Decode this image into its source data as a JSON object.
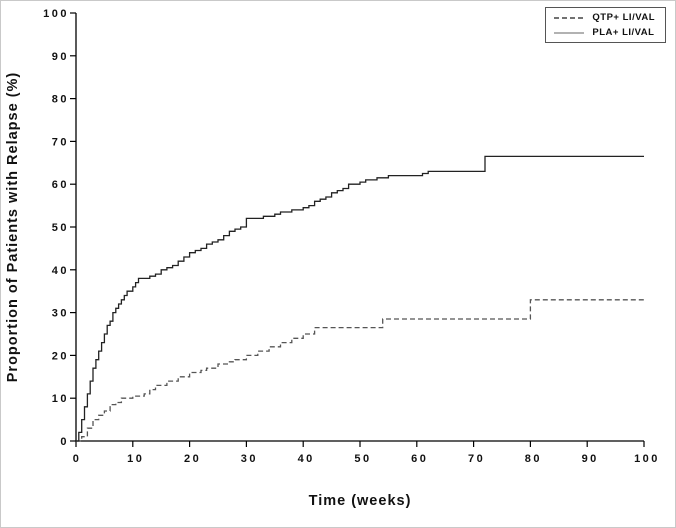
{
  "chart_data": {
    "type": "line",
    "subtype": "kaplan-meier-step",
    "title": "",
    "xlabel": "Time (weeks)",
    "ylabel": "Proportion of Patients with Relapse (%)",
    "xlim": [
      0,
      100
    ],
    "ylim": [
      0,
      100
    ],
    "xticks": [
      0,
      10,
      20,
      30,
      40,
      50,
      60,
      70,
      80,
      90,
      100
    ],
    "yticks": [
      0,
      10,
      20,
      30,
      40,
      50,
      60,
      70,
      80,
      90,
      100
    ],
    "grid": false,
    "legend_position": "top-right",
    "series": [
      {
        "name": "QTP+ LI/VAL",
        "style": "dashed",
        "color": "#555555",
        "points": [
          [
            0,
            0
          ],
          [
            1,
            1
          ],
          [
            2,
            3
          ],
          [
            3,
            5
          ],
          [
            4,
            6
          ],
          [
            5,
            7
          ],
          [
            6,
            8.5
          ],
          [
            7,
            9
          ],
          [
            8,
            10
          ],
          [
            10,
            10.5
          ],
          [
            12,
            11
          ],
          [
            13,
            12
          ],
          [
            14,
            13
          ],
          [
            16,
            14
          ],
          [
            18,
            15
          ],
          [
            20,
            16
          ],
          [
            22,
            16.5
          ],
          [
            23,
            17
          ],
          [
            25,
            18
          ],
          [
            27,
            18.5
          ],
          [
            28,
            19
          ],
          [
            30,
            20
          ],
          [
            32,
            21
          ],
          [
            34,
            22
          ],
          [
            36,
            23
          ],
          [
            38,
            24
          ],
          [
            40,
            25
          ],
          [
            42,
            26.5
          ],
          [
            54,
            28.5
          ],
          [
            80,
            33
          ],
          [
            100,
            33
          ]
        ]
      },
      {
        "name": "PLA+ LI/VAL",
        "style": "solid",
        "color": "#222222",
        "points": [
          [
            0,
            0
          ],
          [
            0.5,
            2
          ],
          [
            1,
            5
          ],
          [
            1.5,
            8
          ],
          [
            2,
            11
          ],
          [
            2.5,
            14
          ],
          [
            3,
            17
          ],
          [
            3.5,
            19
          ],
          [
            4,
            21
          ],
          [
            4.5,
            23
          ],
          [
            5,
            25
          ],
          [
            5.5,
            27
          ],
          [
            6,
            28
          ],
          [
            6.5,
            30
          ],
          [
            7,
            31
          ],
          [
            7.5,
            32
          ],
          [
            8,
            33
          ],
          [
            8.5,
            34
          ],
          [
            9,
            35
          ],
          [
            10,
            36
          ],
          [
            10.5,
            37
          ],
          [
            11,
            38
          ],
          [
            13,
            38.5
          ],
          [
            14,
            39
          ],
          [
            15,
            40
          ],
          [
            16,
            40.5
          ],
          [
            17,
            41
          ],
          [
            18,
            42
          ],
          [
            19,
            43
          ],
          [
            20,
            44
          ],
          [
            21,
            44.5
          ],
          [
            22,
            45
          ],
          [
            23,
            46
          ],
          [
            24,
            46.5
          ],
          [
            25,
            47
          ],
          [
            26,
            48
          ],
          [
            27,
            49
          ],
          [
            28,
            49.5
          ],
          [
            29,
            50
          ],
          [
            30,
            52
          ],
          [
            33,
            52.5
          ],
          [
            35,
            53
          ],
          [
            36,
            53.5
          ],
          [
            38,
            54
          ],
          [
            40,
            54.5
          ],
          [
            41,
            55
          ],
          [
            42,
            56
          ],
          [
            43,
            56.5
          ],
          [
            44,
            57
          ],
          [
            45,
            58
          ],
          [
            46,
            58.5
          ],
          [
            47,
            59
          ],
          [
            48,
            60
          ],
          [
            50,
            60.5
          ],
          [
            51,
            61
          ],
          [
            53,
            61.5
          ],
          [
            55,
            62
          ],
          [
            61,
            62.5
          ],
          [
            62,
            63
          ],
          [
            72,
            66.5
          ],
          [
            100,
            66.5
          ]
        ]
      }
    ]
  },
  "colors": {
    "axis": "#000000",
    "solid_line": "#222222",
    "dashed_line": "#555555",
    "legend_solid_sample": "#999999",
    "legend_dashed_sample": "#444444"
  }
}
